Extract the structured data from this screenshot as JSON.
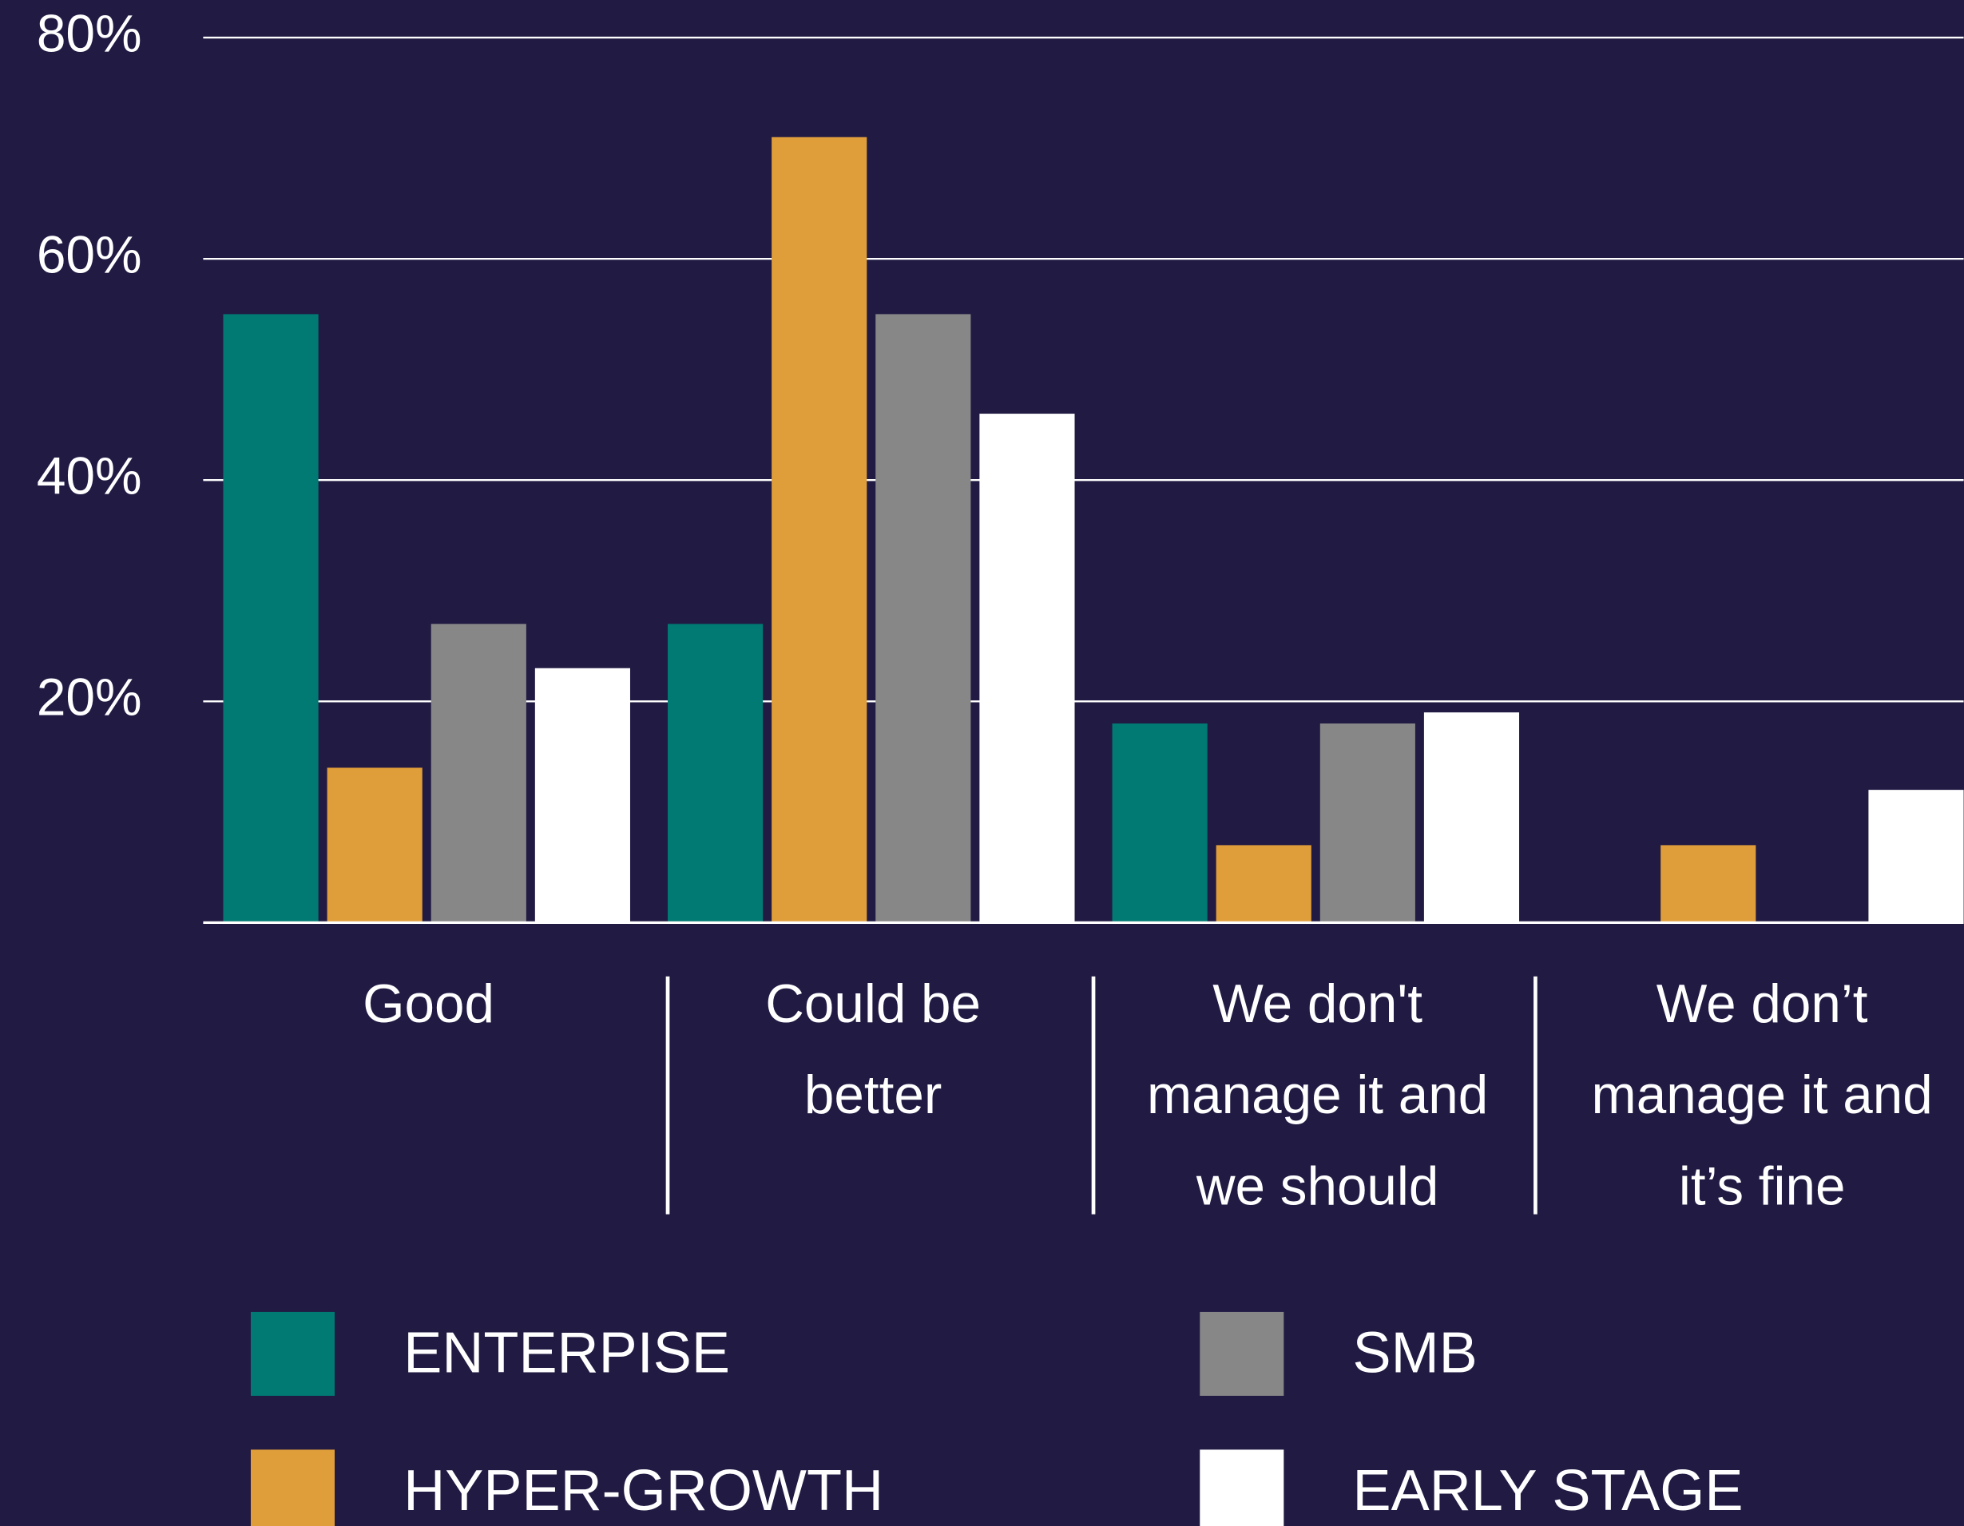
{
  "chart_data": {
    "type": "bar",
    "categories": [
      [
        "Good"
      ],
      [
        "Could be",
        "better"
      ],
      [
        "We don't",
        "manage it and",
        "we should"
      ],
      [
        "We don’t",
        "manage it and",
        "it’s fine"
      ]
    ],
    "series": [
      {
        "name": "ENTERPISE",
        "color": "#007a73",
        "values": [
          55,
          27,
          18,
          0
        ]
      },
      {
        "name": "HYPER-GROWTH",
        "color": "#e09e3a",
        "values": [
          14,
          71,
          7,
          7
        ]
      },
      {
        "name": "SMB",
        "color": "#878787",
        "values": [
          27,
          55,
          18,
          0
        ]
      },
      {
        "name": "EARLY STAGE",
        "color": "#ffffff",
        "values": [
          23,
          46,
          19,
          12
        ]
      }
    ],
    "ylim": [
      0,
      80
    ],
    "yticks": [
      {
        "value": 20,
        "label": "20%"
      },
      {
        "value": 40,
        "label": "40%"
      },
      {
        "value": 60,
        "label": "60%"
      },
      {
        "value": 80,
        "label": "80%"
      }
    ],
    "grid": true
  }
}
